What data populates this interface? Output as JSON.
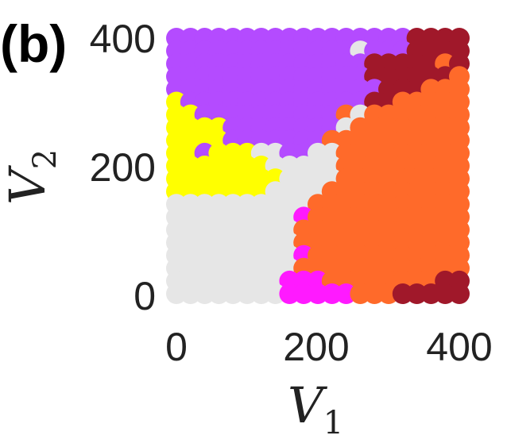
{
  "panel_label": "(b)",
  "chart_data": {
    "type": "scatter",
    "title": "",
    "xlabel": "V",
    "xlabel_sub": "1",
    "ylabel": "V",
    "ylabel_sub": "2",
    "xlim": [
      0,
      400
    ],
    "ylim": [
      0,
      400
    ],
    "xticks": [
      "0",
      "200",
      "400"
    ],
    "yticks": [
      "0",
      "200",
      "400"
    ],
    "grid": false,
    "legend": "none",
    "marker_spacing": 20,
    "series_colors": {
      "purple": "#b44bff",
      "maroon": "#a0182a",
      "orange": "#ff6a2a",
      "green": "#22ff00",
      "yellow": "#ffff00",
      "gray": "#e6e6e6",
      "magenta": "#ff1aff"
    },
    "grid_rows": [
      "PPPPPPPPPPPPPPPPPMMMM",
      "PPPPPPPPPPPPPGPPPMMMM",
      "PPPPPPPPPPPPPPMMMMMOM",
      "PPPPPPPPPPPPPPMMMMMMO",
      "PPPPPPPPPPPPPPPMMMOOO",
      "YPPPPPPPPPPPPPMMOOOOO",
      "YYPPPPPPPPPPOGOOOOOOO",
      "YYYYPPPPPPPPGOOOOOOOO",
      "YYYYPPPPPPPOOOOOOOOOO",
      "YYPYYYGGPPGGOOOOOOOOO",
      "YYYYYYYGGGGGOOOOOOOOO",
      "YYYYYYYYGGGGOOOOOOOOO",
      "YYYYYYYGGGGOOOOOOOOOO",
      "GGGGGGGGGGOOOOOOOOOOO",
      "GGGGGGGGGXOOOOOOOOOOO",
      "GGGGGGGGGOOOOOOOOOOOO",
      "GGGGGGGGGOOOOOOOOOOOO",
      "GGGGGGGGGXOOOOOOOOOOO",
      "GGGGGGGGGOOOOOOOOOOOO",
      "GGGGGGGGXXXOOOOOOOOMM",
      "GGGGGGGGXXXXXOOOMMMMM"
    ],
    "grid_legend": "rows run from V2=400 (first) down to V2=0 (last); columns run V1=0..400; P=purple, M=maroon, O=orange, G=gray, Y=yellow, X=magenta; lowercase not used"
  }
}
